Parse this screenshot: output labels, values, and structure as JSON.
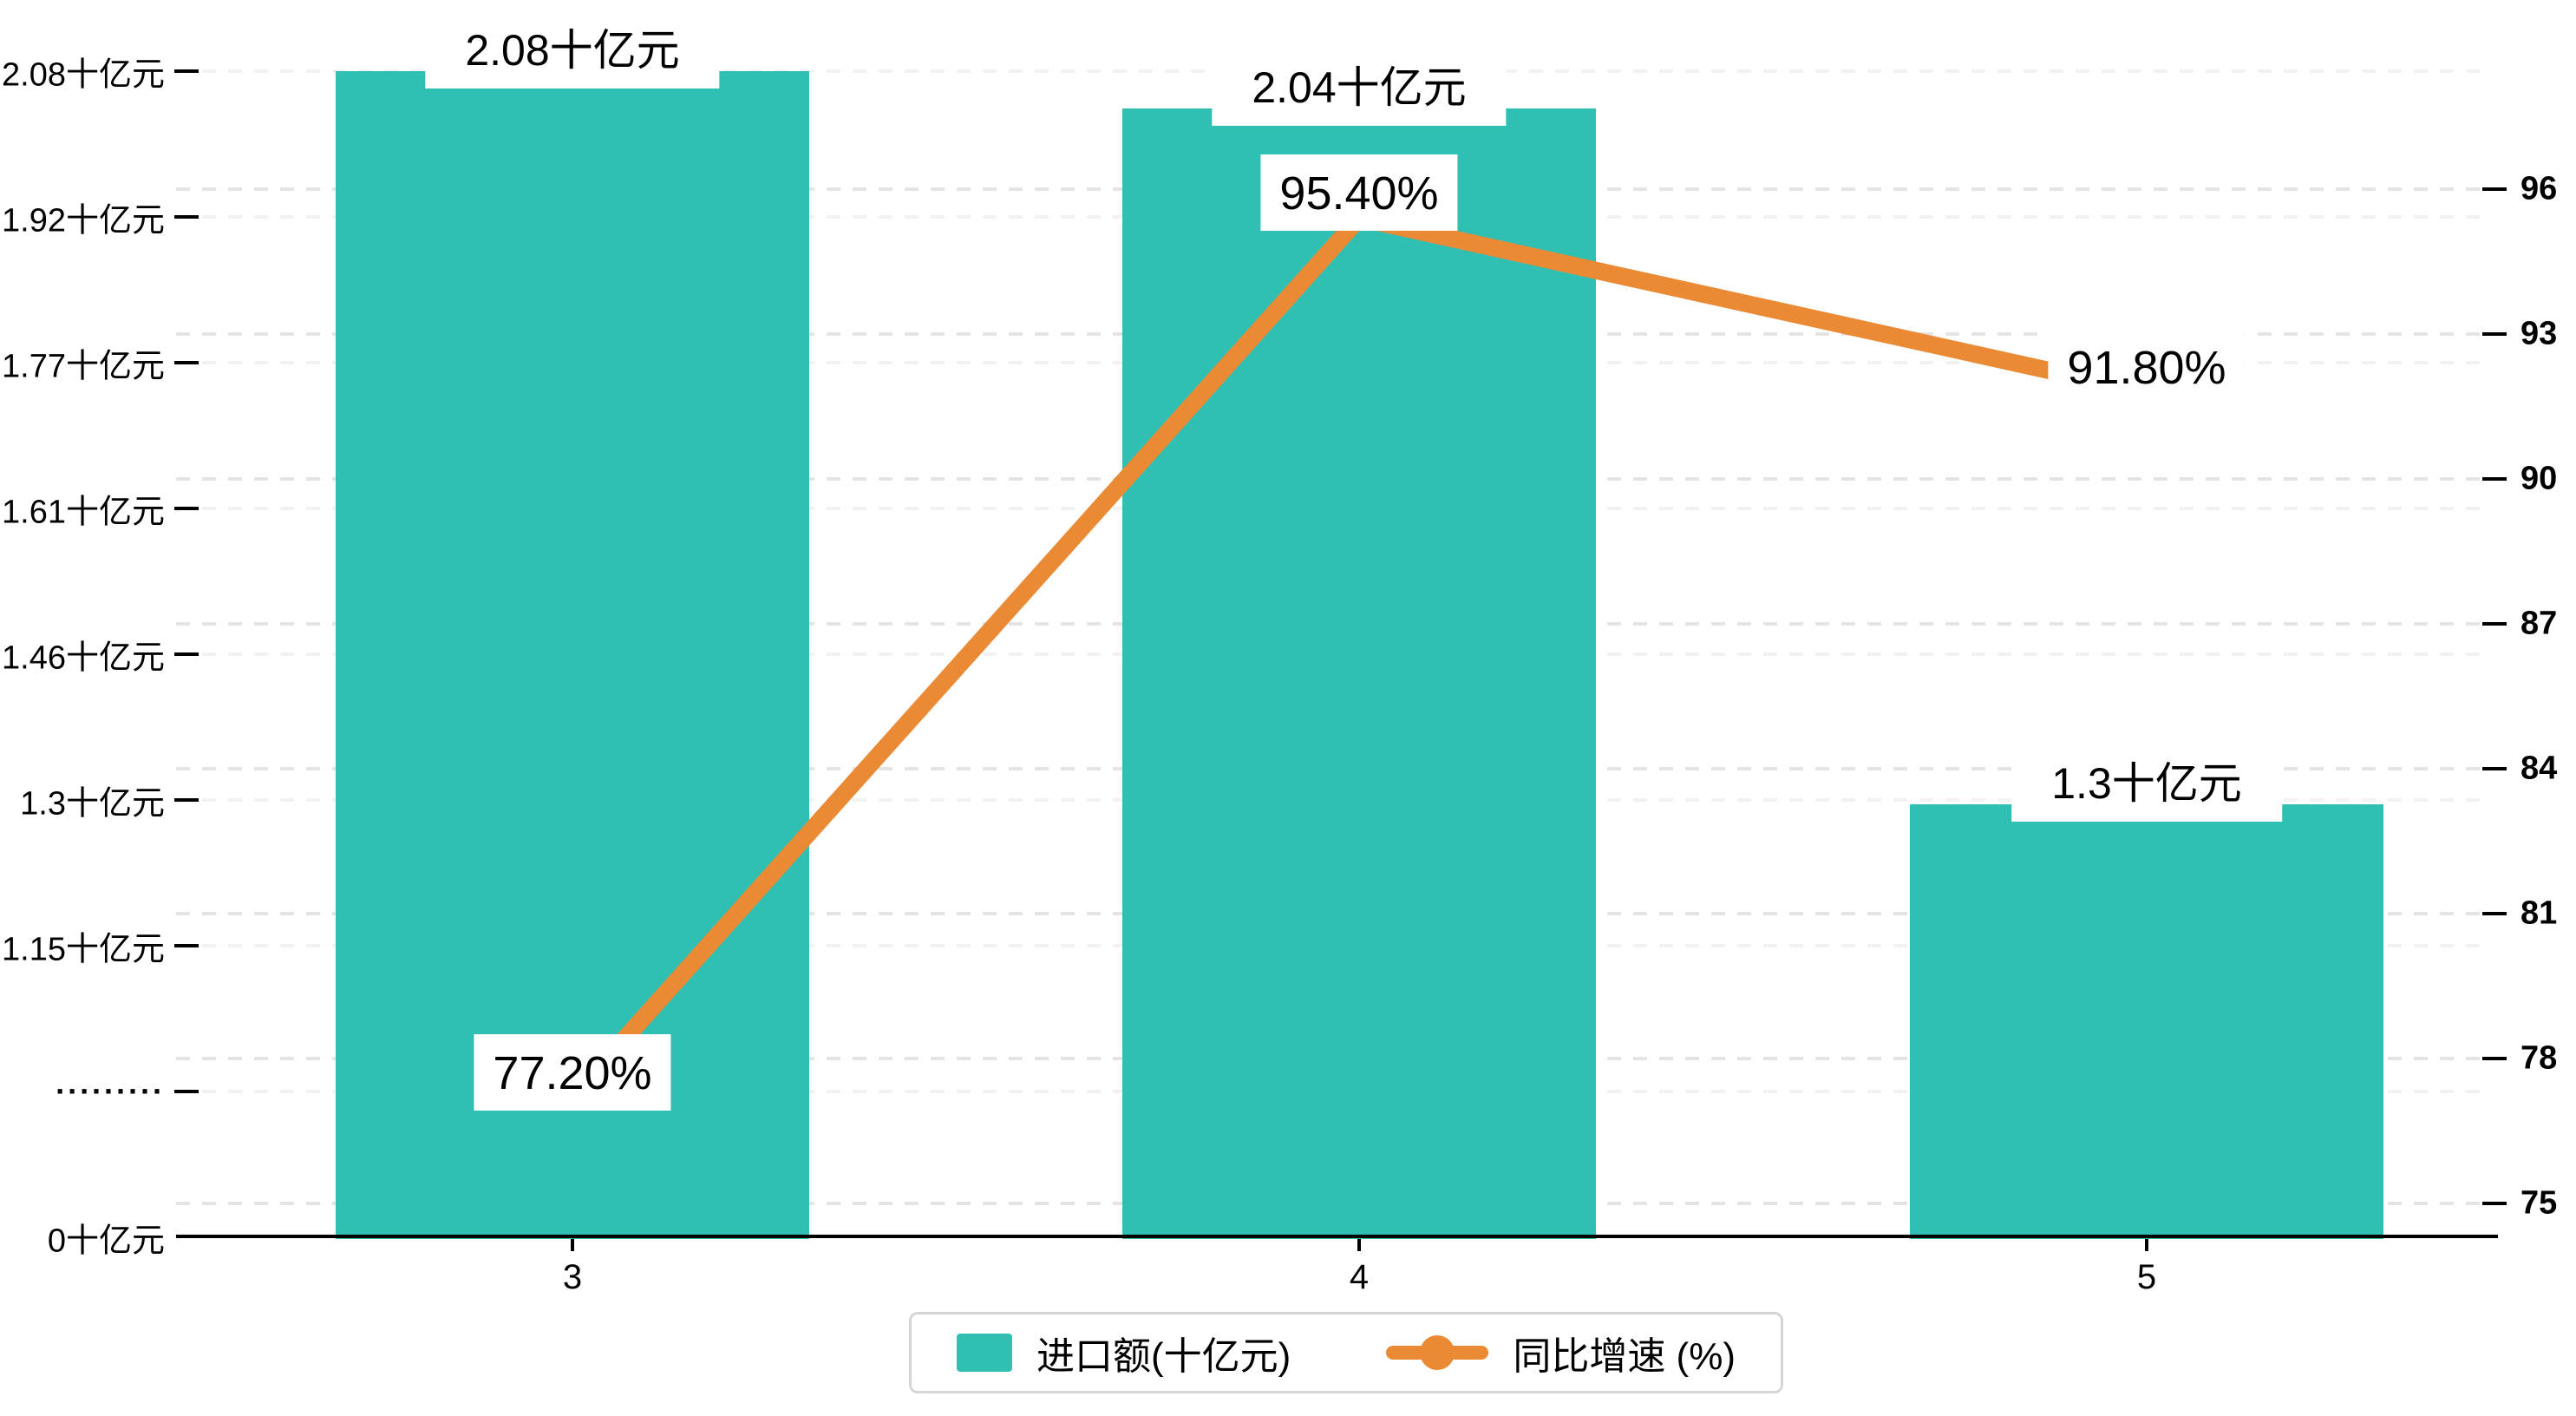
{
  "chart_data": {
    "type": "bar",
    "subtype": "bar-line-combo",
    "categories": [
      "3",
      "4",
      "5"
    ],
    "series": [
      {
        "name": "进口额(十亿元)",
        "type": "bar",
        "axis": "left",
        "values": [
          2.08,
          2.04,
          1.3
        ],
        "data_labels": [
          "2.08十亿元",
          "2.04十亿元",
          "1.3十亿元"
        ],
        "color": "#30BFB3"
      },
      {
        "name": "同比增速 (%)",
        "type": "line",
        "axis": "right",
        "values": [
          77.2,
          95.4,
          91.8
        ],
        "data_labels": [
          "77.20%",
          "95.40%",
          "91.80%"
        ],
        "color": "#EB8A34"
      }
    ],
    "left_axis": {
      "tick_labels": [
        "0十亿元",
        "·········",
        "1.15十亿元",
        "1.3十亿元",
        "1.46十亿元",
        "1.61十亿元",
        "1.77十亿元",
        "1.92十亿元",
        "2.08十亿元"
      ],
      "broken_axis_marker": "·········",
      "value_anchors": {
        "v0": 1.15,
        "v1": 2.08
      }
    },
    "right_axis": {
      "tick_values": [
        75,
        78,
        81,
        84,
        87,
        90,
        93,
        96
      ],
      "min": 75,
      "max": 96,
      "step": 3
    },
    "legend": [
      {
        "label": "进口额(十亿元)",
        "marker": "rect"
      },
      {
        "label": "同比增速 (%)",
        "marker": "line-dot"
      }
    ],
    "grid": true,
    "background": "#ffffff"
  },
  "colors": {
    "bar": "#30BFB3",
    "line": "#EB8A34",
    "grid_major": "#e4e4e4",
    "grid_minor": "#f2f2f2",
    "axis": "#000000",
    "text": "#000000",
    "legend_border": "#d6d6d6",
    "label_background": "#ffffff"
  }
}
